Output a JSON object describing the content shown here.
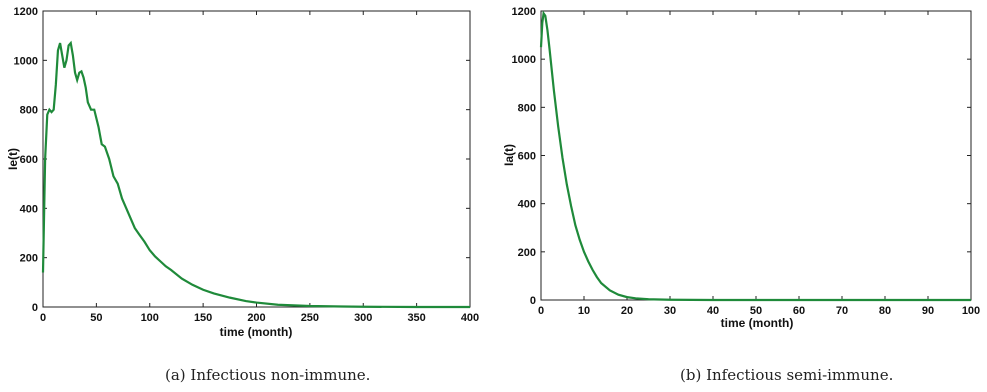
{
  "chart_data": [
    {
      "type": "line",
      "panel": "a",
      "caption": "(a) Infectious non-immune.",
      "xlabel": "time (month)",
      "ylabel": "Ie(t)",
      "xlim": [
        0,
        400
      ],
      "ylim": [
        0,
        1200
      ],
      "xticks": [
        0,
        50,
        100,
        150,
        200,
        250,
        300,
        350,
        400
      ],
      "yticks": [
        0,
        200,
        400,
        600,
        800,
        1000,
        1200
      ],
      "color": "#1f8a3a",
      "series": [
        {
          "x": [
            0,
            2,
            4,
            6,
            8,
            10,
            12,
            14,
            16,
            18,
            20,
            22,
            24,
            26,
            28,
            30,
            32,
            34,
            36,
            38,
            40,
            42,
            45,
            48,
            52,
            55,
            58,
            62,
            66,
            70,
            74,
            78,
            82,
            86,
            90,
            95,
            100,
            105,
            110,
            115,
            120,
            130,
            140,
            150,
            160,
            175,
            190,
            200,
            220,
            250,
            280,
            300,
            350,
            400
          ],
          "y": [
            140,
            600,
            780,
            800,
            790,
            800,
            900,
            1040,
            1070,
            1020,
            970,
            1000,
            1060,
            1070,
            1020,
            950,
            920,
            950,
            955,
            930,
            890,
            830,
            800,
            800,
            730,
            660,
            650,
            600,
            530,
            500,
            440,
            400,
            360,
            320,
            295,
            265,
            230,
            205,
            185,
            165,
            150,
            115,
            90,
            70,
            55,
            38,
            24,
            18,
            9,
            4,
            2,
            1,
            0,
            0
          ]
        }
      ]
    },
    {
      "type": "line",
      "panel": "b",
      "caption": "(b) Infectious semi-immune.",
      "xlabel": "time (month)",
      "ylabel": "Ia(t)",
      "xlim": [
        0,
        100
      ],
      "ylim": [
        0,
        1200
      ],
      "xticks": [
        0,
        10,
        20,
        30,
        40,
        50,
        60,
        70,
        80,
        90,
        100
      ],
      "yticks": [
        0,
        200,
        400,
        600,
        800,
        1000,
        1200
      ],
      "color": "#1f8a3a",
      "series": [
        {
          "x": [
            0,
            0.3,
            0.6,
            1,
            1.5,
            2,
            3,
            4,
            5,
            6,
            7,
            8,
            9,
            10,
            11,
            12,
            13,
            14,
            16,
            18,
            20,
            22,
            25,
            30,
            40,
            50,
            60,
            70,
            80,
            90,
            100
          ],
          "y": [
            1050,
            1150,
            1190,
            1180,
            1120,
            1040,
            870,
            720,
            590,
            480,
            390,
            310,
            250,
            200,
            160,
            125,
            95,
            70,
            40,
            22,
            12,
            7,
            3,
            1,
            0,
            0,
            0,
            0,
            0,
            0,
            0
          ]
        }
      ]
    }
  ]
}
